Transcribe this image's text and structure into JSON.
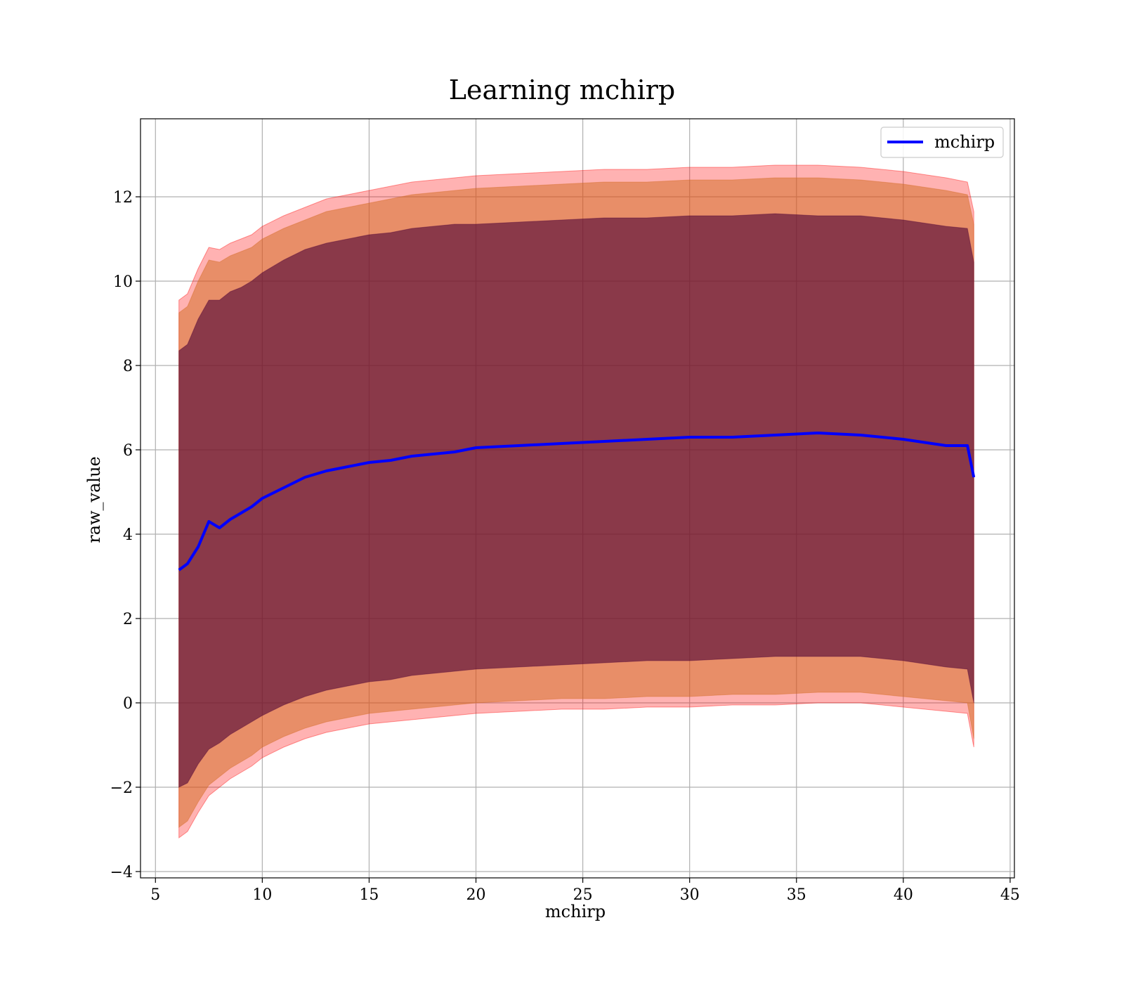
{
  "chart_data": {
    "type": "line",
    "title": "Learning mchirp",
    "xlabel": "mchirp",
    "ylabel": "raw_value",
    "xlim": [
      4.3,
      45.2
    ],
    "ylim": [
      -4.15,
      13.85
    ],
    "xticks": [
      5,
      10,
      15,
      20,
      25,
      30,
      35,
      40,
      45
    ],
    "yticks": [
      -4,
      -2,
      0,
      2,
      4,
      6,
      8,
      10,
      12
    ],
    "xtick_labels": [
      "5",
      "10",
      "15",
      "20",
      "25",
      "30",
      "35",
      "40",
      "45"
    ],
    "ytick_labels": [
      "−4",
      "−2",
      "0",
      "2",
      "4",
      "6",
      "8",
      "10",
      "12"
    ],
    "grid": true,
    "legend": {
      "placement": "top-right",
      "entries": [
        "mchirp"
      ]
    },
    "series": [
      {
        "name": "mchirp",
        "color": "#0000ff",
        "x": [
          6.1,
          6.5,
          7.0,
          7.5,
          8.0,
          8.5,
          9.0,
          9.5,
          10.0,
          11.0,
          12.0,
          13.0,
          14.0,
          15.0,
          16.0,
          17.0,
          18.0,
          19.0,
          20.0,
          22.0,
          24.0,
          26.0,
          28.0,
          30.0,
          32.0,
          34.0,
          36.0,
          38.0,
          40.0,
          42.0,
          43.0,
          43.3
        ],
        "values": [
          3.15,
          3.3,
          3.7,
          4.3,
          4.15,
          4.35,
          4.5,
          4.65,
          4.85,
          5.1,
          5.35,
          5.5,
          5.6,
          5.7,
          5.75,
          5.85,
          5.9,
          5.95,
          6.05,
          6.1,
          6.15,
          6.2,
          6.25,
          6.3,
          6.3,
          6.35,
          6.4,
          6.35,
          6.25,
          6.1,
          6.1,
          5.35
        ]
      }
    ],
    "bands": [
      {
        "color": "#ff0000",
        "opacity": 0.3,
        "x": [
          6.1,
          6.5,
          7.0,
          7.5,
          8.0,
          8.5,
          9.0,
          9.5,
          10.0,
          11.0,
          12.0,
          13.0,
          14.0,
          15.0,
          16.0,
          17.0,
          18.0,
          19.0,
          20.0,
          22.0,
          24.0,
          26.0,
          28.0,
          30.0,
          32.0,
          34.0,
          36.0,
          38.0,
          40.0,
          42.0,
          43.0,
          43.3
        ],
        "lower": [
          -3.2,
          -3.05,
          -2.6,
          -2.2,
          -2.0,
          -1.8,
          -1.65,
          -1.5,
          -1.3,
          -1.05,
          -0.85,
          -0.7,
          -0.6,
          -0.5,
          -0.45,
          -0.4,
          -0.35,
          -0.3,
          -0.25,
          -0.2,
          -0.15,
          -0.15,
          -0.1,
          -0.1,
          -0.05,
          -0.05,
          0.0,
          0.0,
          -0.1,
          -0.2,
          -0.25,
          -1.05
        ],
        "upper": [
          9.55,
          9.7,
          10.3,
          10.8,
          10.75,
          10.9,
          11.0,
          11.1,
          11.3,
          11.55,
          11.75,
          11.95,
          12.05,
          12.15,
          12.25,
          12.35,
          12.4,
          12.45,
          12.5,
          12.55,
          12.6,
          12.65,
          12.65,
          12.7,
          12.7,
          12.75,
          12.75,
          12.7,
          12.6,
          12.45,
          12.35,
          11.65
        ]
      },
      {
        "color": "#d2691e",
        "opacity": 0.5,
        "x": [
          6.1,
          6.5,
          7.0,
          7.5,
          8.0,
          8.5,
          9.0,
          9.5,
          10.0,
          11.0,
          12.0,
          13.0,
          14.0,
          15.0,
          16.0,
          17.0,
          18.0,
          19.0,
          20.0,
          22.0,
          24.0,
          26.0,
          28.0,
          30.0,
          32.0,
          34.0,
          36.0,
          38.0,
          40.0,
          42.0,
          43.0,
          43.3
        ],
        "lower": [
          -2.95,
          -2.8,
          -2.35,
          -1.95,
          -1.75,
          -1.55,
          -1.4,
          -1.25,
          -1.05,
          -0.8,
          -0.6,
          -0.45,
          -0.35,
          -0.25,
          -0.2,
          -0.15,
          -0.1,
          -0.05,
          0.0,
          0.05,
          0.1,
          0.1,
          0.15,
          0.15,
          0.2,
          0.2,
          0.25,
          0.25,
          0.15,
          0.05,
          0.0,
          -0.85
        ],
        "upper": [
          9.25,
          9.4,
          10.0,
          10.5,
          10.45,
          10.6,
          10.7,
          10.8,
          11.0,
          11.25,
          11.45,
          11.65,
          11.75,
          11.85,
          11.95,
          12.05,
          12.1,
          12.15,
          12.2,
          12.25,
          12.3,
          12.35,
          12.35,
          12.4,
          12.4,
          12.45,
          12.45,
          12.4,
          12.3,
          12.15,
          12.05,
          11.35
        ]
      },
      {
        "color": "#4b0036",
        "opacity": 0.6,
        "x": [
          6.1,
          6.5,
          7.0,
          7.5,
          8.0,
          8.5,
          9.0,
          9.5,
          10.0,
          11.0,
          12.0,
          13.0,
          14.0,
          15.0,
          16.0,
          17.0,
          18.0,
          19.0,
          20.0,
          22.0,
          24.0,
          26.0,
          28.0,
          30.0,
          32.0,
          34.0,
          36.0,
          38.0,
          40.0,
          42.0,
          43.0,
          43.3
        ],
        "lower": [
          -2.0,
          -1.9,
          -1.45,
          -1.1,
          -0.95,
          -0.75,
          -0.6,
          -0.45,
          -0.3,
          -0.05,
          0.15,
          0.3,
          0.4,
          0.5,
          0.55,
          0.65,
          0.7,
          0.75,
          0.8,
          0.85,
          0.9,
          0.95,
          1.0,
          1.0,
          1.05,
          1.1,
          1.1,
          1.1,
          1.0,
          0.85,
          0.8,
          0.0
        ],
        "upper": [
          8.35,
          8.5,
          9.1,
          9.55,
          9.55,
          9.75,
          9.85,
          10.0,
          10.2,
          10.5,
          10.75,
          10.9,
          11.0,
          11.1,
          11.15,
          11.25,
          11.3,
          11.35,
          11.35,
          11.4,
          11.45,
          11.5,
          11.5,
          11.55,
          11.55,
          11.6,
          11.55,
          11.55,
          11.45,
          11.3,
          11.25,
          10.45
        ]
      }
    ]
  }
}
